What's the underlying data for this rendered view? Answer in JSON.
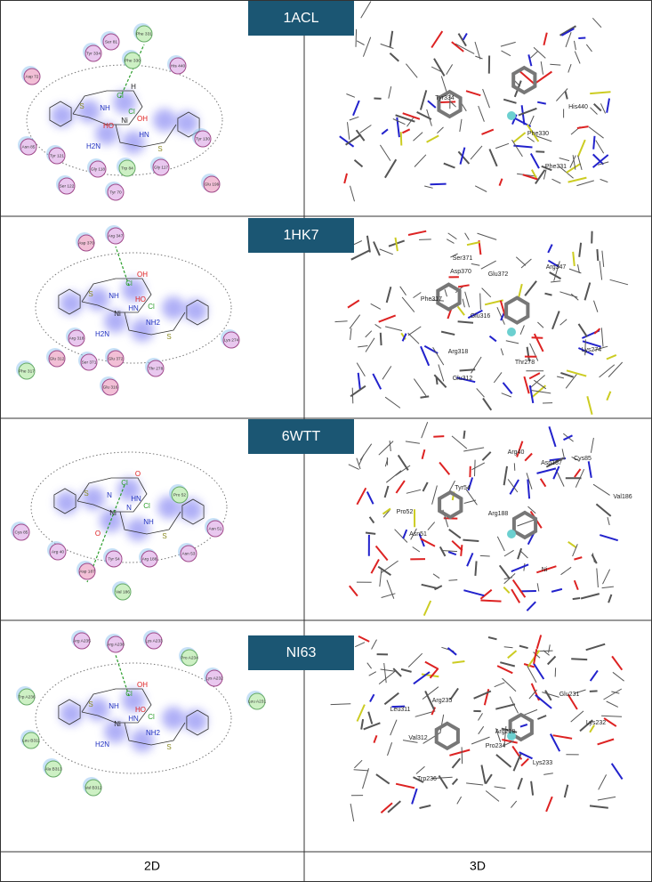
{
  "panels": [
    {
      "id": "1ACL",
      "atoms": [
        "S",
        "NH",
        "Cl",
        "H",
        "Cl",
        "OH",
        "HO",
        "Ni",
        "HN",
        "H2N",
        "S"
      ],
      "residues_2d": [
        {
          "label": "Ser 81",
          "color": "#e9c8ef"
        },
        {
          "label": "Phe 331",
          "color": "#cdf0c4"
        },
        {
          "label": "Tyr 334",
          "color": "#e9c8ef"
        },
        {
          "label": "Phe 330",
          "color": "#cdf0c4"
        },
        {
          "label": "His 440",
          "color": "#e9c8ef"
        },
        {
          "label": "Asp 72",
          "color": "#f2bfd6"
        },
        {
          "label": "Asn 85",
          "color": "#e9c8ef"
        },
        {
          "label": "Tyr 121",
          "color": "#e9c8ef"
        },
        {
          "label": "Gly 118",
          "color": "#e9c8ef"
        },
        {
          "label": "Trp 84",
          "color": "#cdf0c4"
        },
        {
          "label": "Gly 117",
          "color": "#e9c8ef"
        },
        {
          "label": "Tyr 130",
          "color": "#e9c8ef"
        },
        {
          "label": "Ser 122",
          "color": "#e9c8ef"
        },
        {
          "label": "Tyr 70",
          "color": "#e9c8ef"
        },
        {
          "label": "Glu 199",
          "color": "#f2bfd6"
        }
      ],
      "residues_3d": [
        "Tyr334",
        "His440",
        "Phe330",
        "Phe331"
      ]
    },
    {
      "id": "1HK7",
      "atoms": [
        "S",
        "NH",
        "Cl",
        "OH",
        "HO",
        "Cl",
        "Ni",
        "HN",
        "NH2",
        "H2N",
        "S"
      ],
      "residues_2d": [
        {
          "label": "Asp 370",
          "color": "#f2bfd6"
        },
        {
          "label": "Arg 347",
          "color": "#e9c8ef"
        },
        {
          "label": "Arg 318",
          "color": "#e9c8ef"
        },
        {
          "label": "Glu 312",
          "color": "#f2bfd6"
        },
        {
          "label": "Ser 371",
          "color": "#e9c8ef"
        },
        {
          "label": "Glu 372",
          "color": "#f2bfd6"
        },
        {
          "label": "Thr 278",
          "color": "#e9c8ef"
        },
        {
          "label": "Lys 274",
          "color": "#e9c8ef"
        },
        {
          "label": "Phe 317",
          "color": "#cdf0c4"
        },
        {
          "label": "Glu 316",
          "color": "#f2bfd6"
        }
      ],
      "residues_3d": [
        "Ser371",
        "Asp370",
        "Glu372",
        "Arg347",
        "Phe317",
        "Glu316",
        "Arg318",
        "Thr278",
        "Lys274",
        "Glu312"
      ]
    },
    {
      "id": "6WTT",
      "atoms": [
        "S",
        "N",
        "Cl",
        "O",
        "HN",
        "Cl",
        "Ni",
        "N",
        "NH",
        "O",
        "S"
      ],
      "residues_2d": [
        {
          "label": "Pro 52",
          "color": "#cdf0c4"
        },
        {
          "label": "Asn 51",
          "color": "#e9c8ef"
        },
        {
          "label": "Cys 85",
          "color": "#e9c8ef"
        },
        {
          "label": "Arg 40",
          "color": "#e9c8ef"
        },
        {
          "label": "Tyr 54",
          "color": "#e9c8ef"
        },
        {
          "label": "Arg 188",
          "color": "#e9c8ef"
        },
        {
          "label": "Asn 53",
          "color": "#e9c8ef"
        },
        {
          "label": "Asp 187",
          "color": "#f2bfd6"
        },
        {
          "label": "Val 186",
          "color": "#cdf0c4"
        }
      ],
      "residues_3d": [
        "Arg40",
        "Asp187",
        "Cys85",
        "Tyr54",
        "Val186",
        "Pro52",
        "Asn51",
        "Arg188",
        "Ni"
      ]
    },
    {
      "id": "NI63",
      "atoms": [
        "S",
        "NH",
        "Cl",
        "OH",
        "HO",
        "Cl",
        "Ni",
        "HN",
        "NH2",
        "H2N",
        "S"
      ],
      "residues_2d": [
        {
          "label": "Arg A235",
          "color": "#e9c8ef"
        },
        {
          "label": "Arg A238",
          "color": "#e9c8ef"
        },
        {
          "label": "Lys A233",
          "color": "#e9c8ef"
        },
        {
          "label": "Pro A234",
          "color": "#cdf0c4"
        },
        {
          "label": "Lys A232",
          "color": "#e9c8ef"
        },
        {
          "label": "Leu A231",
          "color": "#cdf0c4"
        },
        {
          "label": "Trp A236",
          "color": "#cdf0c4"
        },
        {
          "label": "Leu B311",
          "color": "#cdf0c4"
        },
        {
          "label": "Ala B313",
          "color": "#cdf0c4"
        },
        {
          "label": "Val B312",
          "color": "#cdf0c4"
        }
      ],
      "residues_3d": [
        "Arg235",
        "Leu311",
        "Val312",
        "Glu231",
        "Lys232",
        "Arg218",
        "Pro234",
        "Lys233",
        "Trp236"
      ]
    }
  ],
  "columns": [
    "2D",
    "3D"
  ]
}
